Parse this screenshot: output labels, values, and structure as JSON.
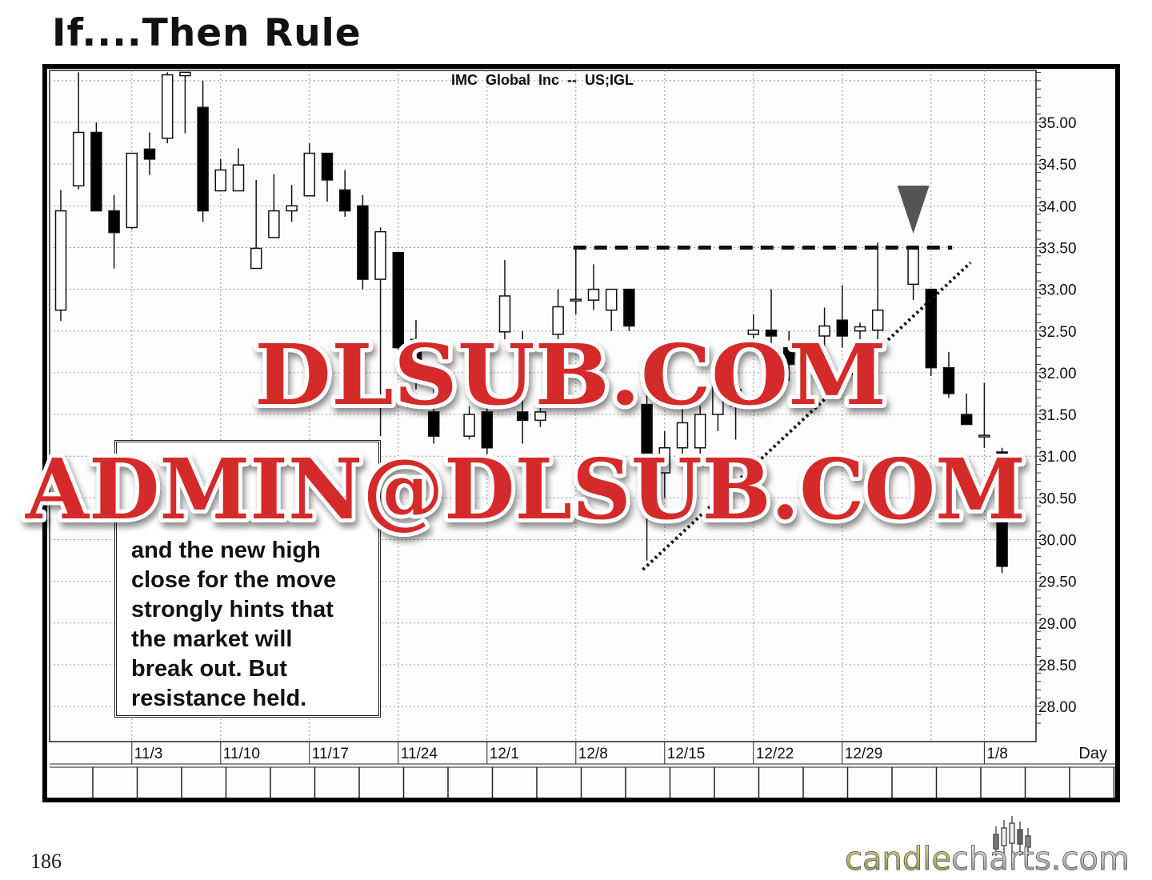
{
  "slide": {
    "title": "If....Then Rule",
    "page_number": "186"
  },
  "note": {
    "lines": [
      "and the new high",
      "close for the move",
      "strongly hints that",
      "the market will",
      "break out. But",
      "resistance held."
    ]
  },
  "watermarks": {
    "line1": "DLSUB.COM",
    "line2": "ADMIN@DLSUB.COM",
    "color": "#d42a2a"
  },
  "logo": {
    "text_part1": "candle",
    "text_part2": "charts.com"
  },
  "chart_data": {
    "type": "candlestick",
    "title": "IMC  Global  Inc  --  US;IGL",
    "xlabel": "Day",
    "x_tick_labels": [
      "11/3",
      "11/10",
      "11/17",
      "11/24",
      "12/1",
      "12/8",
      "12/15",
      "12/22",
      "12/29",
      "1/8"
    ],
    "x_tick_dates": [
      "1997-11-03",
      "1997-11-10",
      "1997-11-17",
      "1997-11-24",
      "1997-12-01",
      "1997-12-08",
      "1997-12-15",
      "1997-12-22",
      "1997-12-29",
      "1998-01-08"
    ],
    "y_tick_labels": [
      "35.00",
      "34.50",
      "34.00",
      "33.50",
      "33.00",
      "32.50",
      "32.00",
      "31.50",
      "31.00",
      "30.50",
      "30.00",
      "29.50",
      "29.00",
      "28.50",
      "28.00"
    ],
    "ylim": [
      27.6,
      35.62
    ],
    "y_axis_side": "right",
    "grid": true,
    "candles": [
      {
        "date": "1997-10-28",
        "o": 32.75,
        "h": 34.19,
        "l": 32.62,
        "c": 33.94
      },
      {
        "date": "1997-10-29",
        "o": 34.24,
        "h": 35.6,
        "l": 34.2,
        "c": 34.88
      },
      {
        "date": "1997-10-30",
        "o": 34.88,
        "h": 35.0,
        "l": 33.94,
        "c": 33.94
      },
      {
        "date": "1997-10-31",
        "o": 33.94,
        "h": 34.13,
        "l": 33.25,
        "c": 33.68
      },
      {
        "date": "1997-11-03",
        "o": 33.74,
        "h": 34.63,
        "l": 33.72,
        "c": 34.63
      },
      {
        "date": "1997-11-04",
        "o": 34.68,
        "h": 34.88,
        "l": 34.37,
        "c": 34.56
      },
      {
        "date": "1997-11-05",
        "o": 34.81,
        "h": 35.6,
        "l": 34.75,
        "c": 35.57
      },
      {
        "date": "1997-11-06",
        "o": 35.56,
        "h": 35.6,
        "l": 34.87,
        "c": 35.6
      },
      {
        "date": "1997-11-07",
        "o": 35.18,
        "h": 35.5,
        "l": 33.81,
        "c": 33.94
      },
      {
        "date": "1997-11-10",
        "o": 34.18,
        "h": 34.56,
        "l": 34.18,
        "c": 34.43
      },
      {
        "date": "1997-11-11",
        "o": 34.18,
        "h": 34.69,
        "l": 34.18,
        "c": 34.49
      },
      {
        "date": "1997-11-12",
        "o": 33.25,
        "h": 34.31,
        "l": 33.25,
        "c": 33.49
      },
      {
        "date": "1997-11-13",
        "o": 33.62,
        "h": 34.38,
        "l": 33.62,
        "c": 33.94
      },
      {
        "date": "1997-11-14",
        "o": 33.94,
        "h": 34.25,
        "l": 33.81,
        "c": 34.0
      },
      {
        "date": "1997-11-17",
        "o": 34.12,
        "h": 34.75,
        "l": 34.12,
        "c": 34.63
      },
      {
        "date": "1997-11-18",
        "o": 34.63,
        "h": 34.63,
        "l": 34.05,
        "c": 34.31
      },
      {
        "date": "1997-11-19",
        "o": 34.19,
        "h": 34.43,
        "l": 33.87,
        "c": 33.94
      },
      {
        "date": "1997-11-20",
        "o": 34.0,
        "h": 34.13,
        "l": 33.0,
        "c": 33.12
      },
      {
        "date": "1997-11-21",
        "o": 33.12,
        "h": 33.74,
        "l": 31.24,
        "c": 33.69
      },
      {
        "date": "1997-11-24",
        "o": 33.44,
        "h": 33.44,
        "l": 32.0,
        "c": 32.3
      },
      {
        "date": "1997-11-25",
        "o": 32.4,
        "h": 32.63,
        "l": 31.8,
        "c": 32.0
      },
      {
        "date": "1997-11-26",
        "o": 31.53,
        "h": 32.0,
        "l": 31.15,
        "c": 31.24
      },
      {
        "date": "1997-11-28",
        "o": 31.24,
        "h": 31.6,
        "l": 31.2,
        "c": 31.5
      },
      {
        "date": "1997-12-01",
        "o": 31.53,
        "h": 31.7,
        "l": 30.9,
        "c": 31.1
      },
      {
        "date": "1997-12-02",
        "o": 32.49,
        "h": 33.35,
        "l": 32.4,
        "c": 32.92
      },
      {
        "date": "1997-12-03",
        "o": 31.53,
        "h": 32.5,
        "l": 31.15,
        "c": 31.43
      },
      {
        "date": "1997-12-04",
        "o": 31.43,
        "h": 31.7,
        "l": 31.35,
        "c": 31.53
      },
      {
        "date": "1997-12-05",
        "o": 32.46,
        "h": 33.0,
        "l": 32.4,
        "c": 32.79
      },
      {
        "date": "1997-12-08",
        "o": 32.87,
        "h": 33.51,
        "l": 32.7,
        "c": 32.88
      },
      {
        "date": "1997-12-09",
        "o": 32.87,
        "h": 33.3,
        "l": 32.75,
        "c": 33.0
      },
      {
        "date": "1997-12-10",
        "o": 32.75,
        "h": 33.0,
        "l": 32.5,
        "c": 33.0
      },
      {
        "date": "1997-12-11",
        "o": 33.0,
        "h": 33.0,
        "l": 32.5,
        "c": 32.56
      },
      {
        "date": "1997-12-12",
        "o": 31.62,
        "h": 32.0,
        "l": 29.75,
        "c": 30.8
      },
      {
        "date": "1997-12-15",
        "o": 30.8,
        "h": 31.3,
        "l": 30.5,
        "c": 31.1
      },
      {
        "date": "1997-12-16",
        "o": 31.1,
        "h": 31.6,
        "l": 30.9,
        "c": 31.4
      },
      {
        "date": "1997-12-17",
        "o": 31.1,
        "h": 31.6,
        "l": 30.9,
        "c": 31.5
      },
      {
        "date": "1997-12-18",
        "o": 31.5,
        "h": 32.1,
        "l": 31.3,
        "c": 31.9
      },
      {
        "date": "1997-12-19",
        "o": 31.6,
        "h": 32.2,
        "l": 31.2,
        "c": 31.8
      },
      {
        "date": "1997-12-22",
        "o": 32.46,
        "h": 32.7,
        "l": 32.3,
        "c": 32.51
      },
      {
        "date": "1997-12-23",
        "o": 32.51,
        "h": 33.0,
        "l": 32.2,
        "c": 32.44
      },
      {
        "date": "1997-12-24",
        "o": 32.3,
        "h": 32.5,
        "l": 31.9,
        "c": 32.1
      },
      {
        "date": "1997-12-26",
        "o": 32.44,
        "h": 32.78,
        "l": 32.3,
        "c": 32.56
      },
      {
        "date": "1997-12-29",
        "o": 32.63,
        "h": 33.05,
        "l": 32.3,
        "c": 32.44
      },
      {
        "date": "1997-12-30",
        "o": 32.5,
        "h": 32.6,
        "l": 32.3,
        "c": 32.55
      },
      {
        "date": "1997-12-31",
        "o": 32.51,
        "h": 33.56,
        "l": 32.4,
        "c": 32.75
      },
      {
        "date": "1998-01-02",
        "o": 33.06,
        "h": 33.51,
        "l": 32.87,
        "c": 33.49
      },
      {
        "date": "1998-01-05",
        "o": 33.0,
        "h": 33.0,
        "l": 31.96,
        "c": 32.06
      },
      {
        "date": "1998-01-06",
        "o": 32.06,
        "h": 32.25,
        "l": 31.7,
        "c": 31.75
      },
      {
        "date": "1998-01-07",
        "o": 31.5,
        "h": 31.75,
        "l": 31.38,
        "c": 31.38
      },
      {
        "date": "1998-01-08",
        "o": 31.24,
        "h": 31.88,
        "l": 31.1,
        "c": 31.25
      },
      {
        "date": "1998-01-09",
        "o": 31.05,
        "h": 31.1,
        "l": 29.6,
        "c": 29.68
      }
    ],
    "annotations": {
      "resistance_line": {
        "style": "dashed",
        "price": 33.5,
        "from": "1997-12-08",
        "to": "1998-01-07"
      },
      "trend_line": {
        "style": "dotted",
        "from": {
          "date": "1997-12-12",
          "price": 29.64
        },
        "to": {
          "date": "1998-01-07",
          "price": 33.32
        }
      },
      "marker": {
        "shape": "down-triangle",
        "date": "1998-01-02",
        "color": "#555555"
      }
    }
  }
}
